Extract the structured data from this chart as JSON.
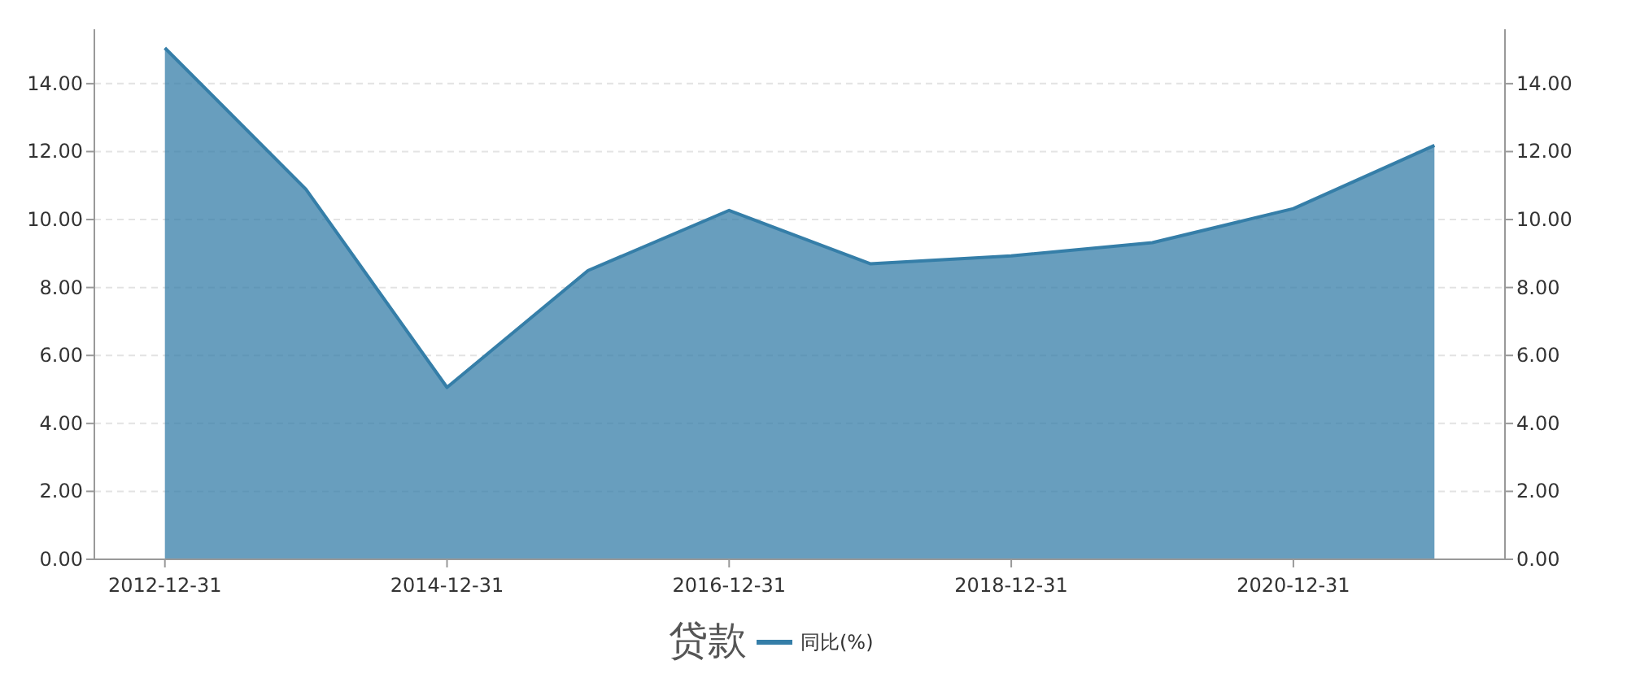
{
  "chart_data": {
    "type": "area",
    "title": "贷款",
    "categories": [
      "2012-12-31",
      null,
      "2014-12-31",
      null,
      "2016-12-31",
      null,
      "2018-12-31",
      null,
      "2020-12-31",
      null
    ],
    "series": [
      {
        "name": "同比(%)",
        "color": "#357ea8",
        "values": [
          15.05,
          10.89,
          5.06,
          8.5,
          10.27,
          8.7,
          8.93,
          9.32,
          10.32,
          12.18
        ]
      }
    ],
    "ylim": [
      0,
      15.6
    ],
    "yticks": [
      {
        "value": 0,
        "label": "0.00"
      },
      {
        "value": 2,
        "label": "2.00"
      },
      {
        "value": 4,
        "label": "4.00"
      },
      {
        "value": 6,
        "label": "6.00"
      },
      {
        "value": 8,
        "label": "8.00"
      },
      {
        "value": 10,
        "label": "10.00"
      },
      {
        "value": 12,
        "label": "12.00"
      },
      {
        "value": 14,
        "label": "14.00"
      }
    ],
    "y2lim": [
      0,
      15.6
    ],
    "y2ticks": [
      {
        "value": 0,
        "label": "0.00"
      },
      {
        "value": 2,
        "label": "2.00"
      },
      {
        "value": 4,
        "label": "4.00"
      },
      {
        "value": 6,
        "label": "6.00"
      },
      {
        "value": 8,
        "label": "8.00"
      },
      {
        "value": 10,
        "label": "10.00"
      },
      {
        "value": 12,
        "label": "12.00"
      },
      {
        "value": 14,
        "label": "14.00"
      }
    ],
    "grid": "y",
    "legend": "bottom"
  }
}
